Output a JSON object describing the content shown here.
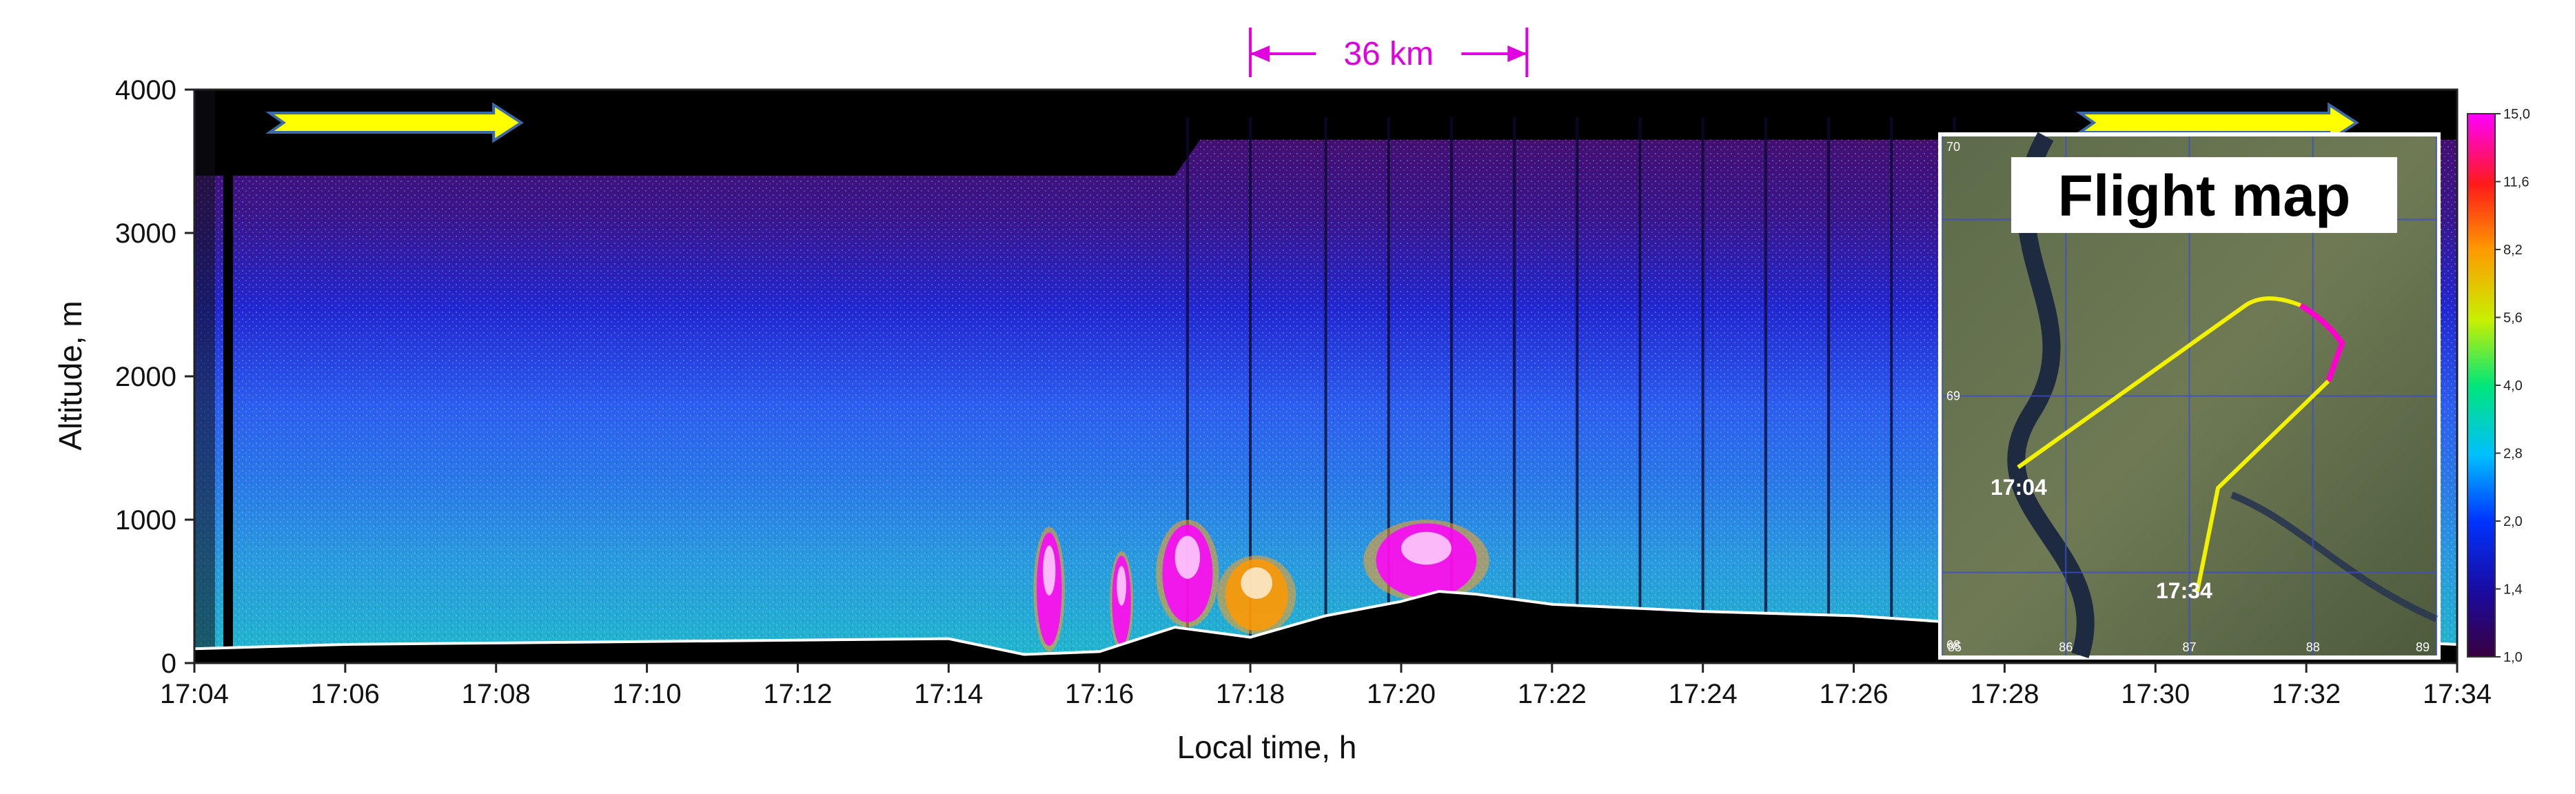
{
  "chart_data": {
    "type": "heatmap",
    "title": "",
    "xlabel": "Local time, h",
    "ylabel": "Altitude, m",
    "x_ticks": [
      "17:04",
      "17:06",
      "17:08",
      "17:10",
      "17:12",
      "17:14",
      "17:16",
      "17:18",
      "17:20",
      "17:22",
      "17:24",
      "17:26",
      "17:28",
      "17:30",
      "17:32",
      "17:34"
    ],
    "y_ticks": [
      "0",
      "1000",
      "2000",
      "3000",
      "4000"
    ],
    "ylim": [
      0,
      4000
    ],
    "xlim": [
      "17:04",
      "17:34"
    ],
    "colorbar": {
      "ticks": [
        "1,0",
        "1,4",
        "2,0",
        "2,8",
        "4,0",
        "5,6",
        "8,2",
        "11,6",
        "15,0"
      ],
      "colors": [
        "#3a0040",
        "#1a0aa0",
        "#0033ff",
        "#00bfff",
        "#00e67a",
        "#c8f000",
        "#ff9900",
        "#ff1a1a",
        "#ff00ff"
      ]
    },
    "distance_marker": {
      "label": "36 km",
      "x_start": "17:18",
      "x_end": "17:21:40"
    },
    "flight_direction_arrows": [
      {
        "x_start": "17:05",
        "x_end": "17:08:20",
        "direction": "right"
      },
      {
        "x_start": "17:29",
        "x_end": "17:32:40",
        "direction": "right"
      }
    ],
    "ground_profile": {
      "x": [
        "17:04",
        "17:06",
        "17:10",
        "17:14",
        "17:15",
        "17:16",
        "17:17",
        "17:18",
        "17:19",
        "17:20",
        "17:20:30",
        "17:21",
        "17:22",
        "17:24",
        "17:26",
        "17:28",
        "17:30",
        "17:32",
        "17:34"
      ],
      "y": [
        100,
        130,
        150,
        170,
        60,
        80,
        250,
        180,
        330,
        430,
        500,
        480,
        410,
        360,
        330,
        260,
        200,
        170,
        130
      ]
    },
    "signal_top": {
      "x": [
        "17:04",
        "17:17",
        "17:17:20",
        "17:30",
        "17:34"
      ],
      "y": [
        3400,
        3400,
        3650,
        3650,
        3650
      ]
    },
    "aerosol_layers": [
      {
        "x_start": "17:05",
        "x_end": "17:34",
        "alt_bottom": 0,
        "alt_top": 1500,
        "level": "2,8-4,0"
      },
      {
        "x_start": "17:05",
        "x_end": "17:34",
        "alt_bottom": 1500,
        "alt_top": 2500,
        "level": "2,0"
      },
      {
        "x_start": "17:05",
        "x_end": "17:34",
        "alt_bottom": 2500,
        "alt_top": 3700,
        "level": "1,4"
      }
    ],
    "smoke_plumes": [
      {
        "x_start": "17:15:10",
        "x_end": "17:15:30",
        "alt_bottom": 80,
        "alt_top": 950,
        "level": "15,0"
      },
      {
        "x_start": "17:16:10",
        "x_end": "17:16:25",
        "alt_bottom": 90,
        "alt_top": 780,
        "level": "15,0"
      },
      {
        "x_start": "17:16:50",
        "x_end": "17:17:30",
        "alt_bottom": 250,
        "alt_top": 1000,
        "level": "15,0"
      },
      {
        "x_start": "17:17:40",
        "x_end": "17:18:30",
        "alt_bottom": 200,
        "alt_top": 750,
        "level": "8,2"
      },
      {
        "x_start": "17:19:40",
        "x_end": "17:21:00",
        "alt_bottom": 430,
        "alt_top": 1000,
        "level": "15,0"
      }
    ],
    "inset_map": {
      "title": "Flight map",
      "lat_ticks": [
        "70",
        "69",
        "68"
      ],
      "lon_ticks": [
        "85",
        "86",
        "87",
        "88",
        "89"
      ],
      "route_labels": [
        "17:04",
        "17:34"
      ],
      "colors": {
        "route": "#f2f200",
        "route_highlight": "#ff00cc"
      }
    },
    "colors": {
      "accent": "#e000e0",
      "arrow": "#ffff00",
      "arrow_border": "#3a6aa8"
    }
  }
}
